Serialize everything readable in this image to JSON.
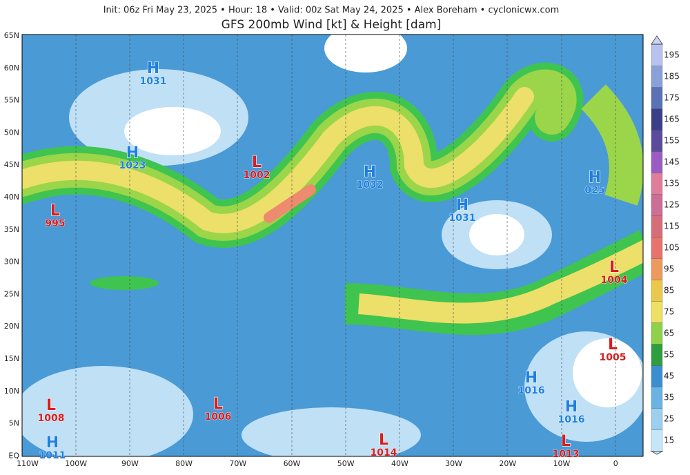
{
  "header": {
    "subtitle": "Init: 06z Fri May 23, 2025  •  Hour: 18  •  Valid: 00z Sat May 24, 2025  •  Alex Boreham  •  cyclonicwx.com",
    "title": "GFS 200mb Wind [kt] & Height [dam]"
  },
  "lat_labels": [
    "65N",
    "60N",
    "55N",
    "50N",
    "45N",
    "40N",
    "35N",
    "30N",
    "25N",
    "20N",
    "15N",
    "10N",
    "5N",
    "EQ"
  ],
  "lon_labels": [
    "110W",
    "100W",
    "90W",
    "80W",
    "70W",
    "60W",
    "50W",
    "40W",
    "30W",
    "20W",
    "10W",
    "0"
  ],
  "colorbar": {
    "ticks": [
      15,
      25,
      35,
      45,
      55,
      65,
      75,
      85,
      95,
      105,
      115,
      125,
      135,
      145,
      155,
      165,
      175,
      185,
      195
    ]
  },
  "centers": [
    {
      "letter": "H",
      "value": "1031"
    },
    {
      "letter": "H",
      "value": "1023"
    },
    {
      "letter": "L",
      "value": "1002"
    },
    {
      "letter": "L",
      "value": "995"
    },
    {
      "letter": "H",
      "value": "1032"
    },
    {
      "letter": "H",
      "value": "1031"
    },
    {
      "letter": "H",
      "value": "025"
    },
    {
      "letter": "L",
      "value": "1004"
    },
    {
      "letter": "L",
      "value": "1005"
    },
    {
      "letter": "H",
      "value": "1016"
    },
    {
      "letter": "H",
      "value": "1016"
    },
    {
      "letter": "L",
      "value": "1013"
    },
    {
      "letter": "L",
      "value": "1014"
    },
    {
      "letter": "L",
      "value": "1006"
    },
    {
      "letter": "L",
      "value": "1008"
    },
    {
      "letter": "H",
      "value": "1011"
    }
  ]
}
